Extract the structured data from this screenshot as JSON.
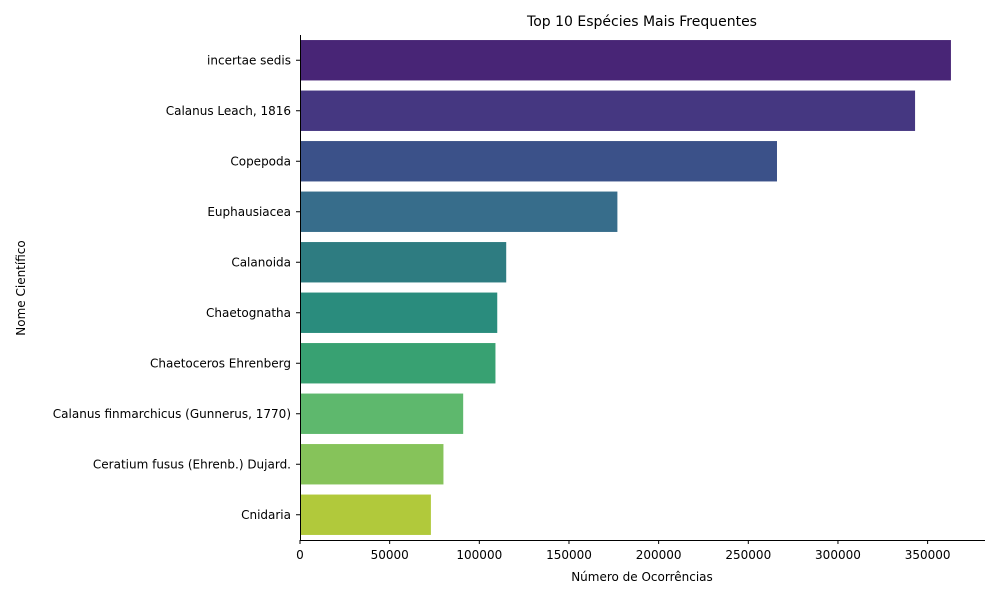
{
  "chart_data": {
    "type": "bar",
    "orientation": "horizontal",
    "title": "Top 10 Espécies Mais Frequentes",
    "xlabel": "Número de Ocorrências",
    "ylabel": "Nome Científico",
    "xlim": [
      0,
      382000
    ],
    "xticks": [
      0,
      50000,
      100000,
      150000,
      200000,
      250000,
      300000,
      350000
    ],
    "grid": false,
    "categories": [
      "incertae sedis",
      "Calanus Leach, 1816",
      "Copepoda",
      "Euphausiacea",
      "Calanoida",
      "Chaetognatha",
      "Chaetoceros Ehrenberg",
      "Calanus finmarchicus (Gunnerus, 1770)",
      "Ceratium fusus (Ehrenb.) Dujard.",
      "Cnidaria"
    ],
    "values": [
      363000,
      343000,
      266000,
      177000,
      115000,
      110000,
      109000,
      91000,
      80000,
      73000
    ],
    "colors": [
      "#482576",
      "#453781",
      "#3b5189",
      "#376d8b",
      "#2e7c81",
      "#2a8c7d",
      "#38a172",
      "#5eb86d",
      "#86c35a",
      "#b1c93b"
    ]
  }
}
